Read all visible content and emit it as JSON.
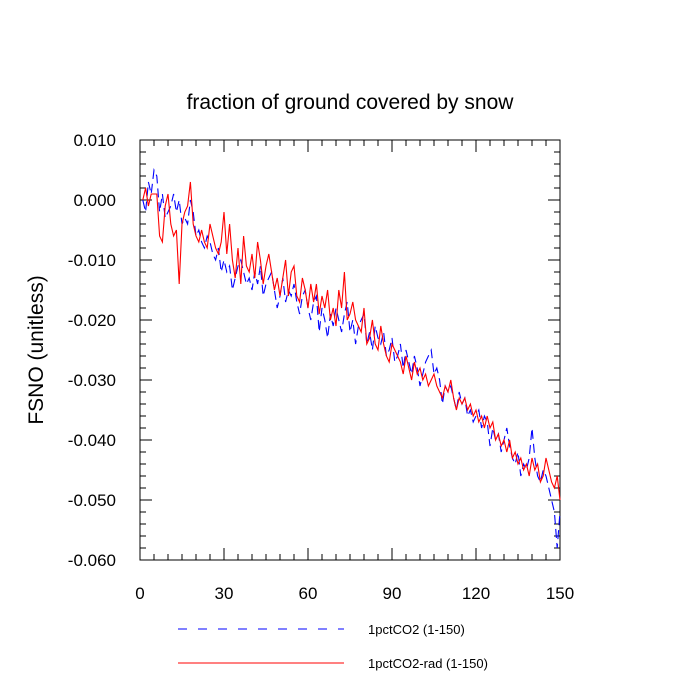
{
  "chart_data": {
    "type": "line",
    "title": "fraction of ground covered by snow",
    "xlabel": "",
    "ylabel": "FSNO  (unitless)",
    "xlim": [
      0,
      150
    ],
    "ylim": [
      -0.06,
      0.01
    ],
    "xticks": [
      0,
      30,
      60,
      90,
      120,
      150
    ],
    "xtick_labels": [
      "0",
      "30",
      "60",
      "90",
      "120",
      "150"
    ],
    "yticks": [
      0.01,
      0.0,
      -0.01,
      -0.02,
      -0.03,
      -0.04,
      -0.05,
      -0.06
    ],
    "ytick_labels": [
      "0.010",
      "0.000",
      "-0.010",
      "-0.020",
      "-0.030",
      "-0.040",
      "-0.050",
      "-0.060"
    ],
    "grid": false,
    "legend_position": "bottom",
    "series": [
      {
        "name": "1pctCO2 (1-150)",
        "color": "#0000ff",
        "style": "dashed",
        "x": [
          1,
          2,
          3,
          4,
          5,
          6,
          7,
          8,
          9,
          10,
          11,
          12,
          13,
          14,
          15,
          16,
          17,
          18,
          19,
          20,
          21,
          22,
          23,
          24,
          25,
          26,
          27,
          28,
          29,
          30,
          31,
          32,
          33,
          34,
          35,
          36,
          37,
          38,
          39,
          40,
          41,
          42,
          43,
          44,
          45,
          46,
          47,
          48,
          49,
          50,
          51,
          52,
          53,
          54,
          55,
          56,
          57,
          58,
          59,
          60,
          61,
          62,
          63,
          64,
          65,
          66,
          67,
          68,
          69,
          70,
          71,
          72,
          73,
          74,
          75,
          76,
          77,
          78,
          79,
          80,
          81,
          82,
          83,
          84,
          85,
          86,
          87,
          88,
          89,
          90,
          91,
          92,
          93,
          94,
          95,
          96,
          97,
          98,
          99,
          100,
          101,
          102,
          103,
          104,
          105,
          106,
          107,
          108,
          109,
          110,
          111,
          112,
          113,
          114,
          115,
          116,
          117,
          118,
          119,
          120,
          121,
          122,
          123,
          124,
          125,
          126,
          127,
          128,
          129,
          130,
          131,
          132,
          133,
          134,
          135,
          136,
          137,
          138,
          139,
          140,
          141,
          142,
          143,
          144,
          145,
          146,
          147,
          148,
          149,
          150
        ],
        "values": [
          0.0,
          -0.002,
          0.003,
          0.001,
          0.005,
          0.004,
          -0.002,
          0.001,
          -0.003,
          -0.002,
          -0.001,
          0.001,
          -0.002,
          0.0,
          -0.004,
          -0.003,
          -0.004,
          0.0,
          -0.002,
          -0.006,
          -0.005,
          -0.007,
          -0.008,
          -0.006,
          -0.007,
          -0.009,
          -0.01,
          -0.008,
          -0.012,
          -0.01,
          -0.012,
          -0.011,
          -0.015,
          -0.013,
          -0.011,
          -0.01,
          -0.012,
          -0.014,
          -0.013,
          -0.015,
          -0.012,
          -0.014,
          -0.011,
          -0.016,
          -0.014,
          -0.013,
          -0.012,
          -0.015,
          -0.018,
          -0.016,
          -0.013,
          -0.017,
          -0.015,
          -0.016,
          -0.014,
          -0.017,
          -0.019,
          -0.016,
          -0.015,
          -0.018,
          -0.02,
          -0.017,
          -0.016,
          -0.022,
          -0.018,
          -0.02,
          -0.023,
          -0.019,
          -0.021,
          -0.018,
          -0.02,
          -0.022,
          -0.019,
          -0.017,
          -0.022,
          -0.02,
          -0.024,
          -0.021,
          -0.02,
          -0.019,
          -0.024,
          -0.022,
          -0.025,
          -0.021,
          -0.023,
          -0.024,
          -0.022,
          -0.026,
          -0.025,
          -0.023,
          -0.027,
          -0.026,
          -0.024,
          -0.028,
          -0.025,
          -0.027,
          -0.029,
          -0.026,
          -0.028,
          -0.031,
          -0.029,
          -0.027,
          -0.026,
          -0.025,
          -0.029,
          -0.028,
          -0.03,
          -0.034,
          -0.031,
          -0.032,
          -0.031,
          -0.033,
          -0.035,
          -0.032,
          -0.034,
          -0.033,
          -0.036,
          -0.035,
          -0.037,
          -0.036,
          -0.035,
          -0.038,
          -0.036,
          -0.037,
          -0.041,
          -0.038,
          -0.04,
          -0.039,
          -0.042,
          -0.04,
          -0.038,
          -0.041,
          -0.043,
          -0.044,
          -0.042,
          -0.046,
          -0.044,
          -0.045,
          -0.043,
          -0.038,
          -0.043,
          -0.046,
          -0.047,
          -0.045,
          -0.046,
          -0.048,
          -0.05,
          -0.052,
          -0.058,
          -0.052
        ]
      },
      {
        "name": "1pctCO2-rad (1-150)",
        "color": "#ff0000",
        "style": "solid",
        "x": [
          1,
          2,
          3,
          4,
          5,
          6,
          7,
          8,
          9,
          10,
          11,
          12,
          13,
          14,
          15,
          16,
          17,
          18,
          19,
          20,
          21,
          22,
          23,
          24,
          25,
          26,
          27,
          28,
          29,
          30,
          31,
          32,
          33,
          34,
          35,
          36,
          37,
          38,
          39,
          40,
          41,
          42,
          43,
          44,
          45,
          46,
          47,
          48,
          49,
          50,
          51,
          52,
          53,
          54,
          55,
          56,
          57,
          58,
          59,
          60,
          61,
          62,
          63,
          64,
          65,
          66,
          67,
          68,
          69,
          70,
          71,
          72,
          73,
          74,
          75,
          76,
          77,
          78,
          79,
          80,
          81,
          82,
          83,
          84,
          85,
          86,
          87,
          88,
          89,
          90,
          91,
          92,
          93,
          94,
          95,
          96,
          97,
          98,
          99,
          100,
          101,
          102,
          103,
          104,
          105,
          106,
          107,
          108,
          109,
          110,
          111,
          112,
          113,
          114,
          115,
          116,
          117,
          118,
          119,
          120,
          121,
          122,
          123,
          124,
          125,
          126,
          127,
          128,
          129,
          130,
          131,
          132,
          133,
          134,
          135,
          136,
          137,
          138,
          139,
          140,
          141,
          142,
          143,
          144,
          145,
          146,
          147,
          148,
          149,
          150
        ],
        "values": [
          0.0,
          0.002,
          -0.001,
          0.001,
          0.001,
          0.001,
          -0.006,
          -0.007,
          -0.001,
          0.001,
          -0.004,
          -0.006,
          -0.005,
          -0.014,
          -0.004,
          -0.002,
          -0.001,
          0.003,
          -0.004,
          -0.006,
          -0.007,
          -0.005,
          -0.007,
          -0.008,
          -0.004,
          -0.006,
          -0.008,
          -0.009,
          -0.007,
          -0.002,
          -0.009,
          -0.004,
          -0.01,
          -0.013,
          -0.008,
          -0.014,
          -0.006,
          -0.011,
          -0.012,
          -0.009,
          -0.013,
          -0.007,
          -0.01,
          -0.014,
          -0.011,
          -0.009,
          -0.012,
          -0.015,
          -0.013,
          -0.016,
          -0.013,
          -0.01,
          -0.016,
          -0.012,
          -0.011,
          -0.016,
          -0.017,
          -0.013,
          -0.015,
          -0.018,
          -0.014,
          -0.017,
          -0.014,
          -0.019,
          -0.016,
          -0.018,
          -0.015,
          -0.02,
          -0.018,
          -0.021,
          -0.015,
          -0.018,
          -0.012,
          -0.02,
          -0.019,
          -0.017,
          -0.02,
          -0.021,
          -0.022,
          -0.018,
          -0.024,
          -0.023,
          -0.02,
          -0.024,
          -0.025,
          -0.021,
          -0.024,
          -0.026,
          -0.027,
          -0.024,
          -0.025,
          -0.026,
          -0.027,
          -0.029,
          -0.026,
          -0.028,
          -0.03,
          -0.027,
          -0.029,
          -0.028,
          -0.03,
          -0.029,
          -0.031,
          -0.03,
          -0.029,
          -0.031,
          -0.032,
          -0.033,
          -0.031,
          -0.032,
          -0.03,
          -0.033,
          -0.035,
          -0.033,
          -0.034,
          -0.033,
          -0.035,
          -0.034,
          -0.036,
          -0.035,
          -0.037,
          -0.036,
          -0.038,
          -0.036,
          -0.038,
          -0.037,
          -0.04,
          -0.039,
          -0.041,
          -0.04,
          -0.042,
          -0.04,
          -0.043,
          -0.042,
          -0.044,
          -0.043,
          -0.045,
          -0.044,
          -0.046,
          -0.043,
          -0.045,
          -0.044,
          -0.047,
          -0.046,
          -0.043,
          -0.045,
          -0.047,
          -0.048,
          -0.046,
          -0.05
        ]
      }
    ]
  }
}
